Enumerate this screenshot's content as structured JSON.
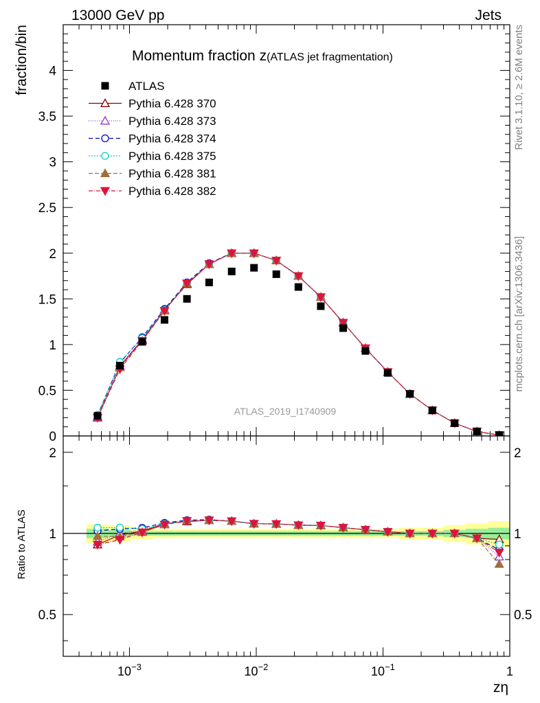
{
  "header": {
    "left": "13000 GeV pp",
    "right": "Jets"
  },
  "side_texts": {
    "rivet": "Rivet 3.1.10, ≥ 2.6M events",
    "mcplots": "mcplots.cern.ch [arXiv:1306.3436]"
  },
  "chart_data": {
    "type": "scatter",
    "title_main": "Momentum fraction z",
    "title_sub": "(ATLAS jet fragmentation)",
    "analysis_label": "ATLAS_2019_I1740909",
    "xlabel": "zη",
    "ylabel": "fraction/bin",
    "ratio_ylabel": "Ratio to ATLAS",
    "x_scale": "log",
    "xlim": [
      0.0003,
      1
    ],
    "ylim": [
      0,
      4.5
    ],
    "ratio_ylim": [
      0.35,
      2.3
    ],
    "ratio_scale": "log",
    "x_ticks": [
      {
        "value": 0.001,
        "base": "10",
        "exp": "−3"
      },
      {
        "value": 0.01,
        "base": "10",
        "exp": "−2"
      },
      {
        "value": 0.1,
        "base": "10",
        "exp": "−1"
      },
      {
        "value": 1,
        "base": "1",
        "exp": ""
      }
    ],
    "y_ticks": [
      {
        "value": 0,
        "label": "0"
      },
      {
        "value": 0.5,
        "label": "0.5"
      },
      {
        "value": 1,
        "label": "1"
      },
      {
        "value": 1.5,
        "label": "1.5"
      },
      {
        "value": 2,
        "label": "2"
      },
      {
        "value": 2.5,
        "label": "2.5"
      },
      {
        "value": 3,
        "label": "3"
      },
      {
        "value": 3.5,
        "label": "3.5"
      },
      {
        "value": 4,
        "label": "4"
      }
    ],
    "ratio_ticks": [
      {
        "value": 0.5,
        "label": "0.5"
      },
      {
        "value": 1,
        "label": "1"
      },
      {
        "value": 2,
        "label": "2"
      }
    ],
    "x": [
      0.00056,
      0.00084,
      0.00126,
      0.00189,
      0.00284,
      0.00425,
      0.0064,
      0.0096,
      0.0144,
      0.0215,
      0.0323,
      0.0485,
      0.0727,
      0.109,
      0.163,
      0.245,
      0.367,
      0.551,
      0.826
    ],
    "data": {
      "name": "ATLAS",
      "color": "#000000",
      "values": [
        0.22,
        0.77,
        1.03,
        1.27,
        1.5,
        1.68,
        1.8,
        1.84,
        1.77,
        1.63,
        1.42,
        1.18,
        0.93,
        0.69,
        0.46,
        0.28,
        0.14,
        0.05,
        0.01
      ],
      "band_rel_inner": [
        0.04,
        0.03,
        0.02,
        0.02,
        0.02,
        0.02,
        0.02,
        0.02,
        0.02,
        0.02,
        0.02,
        0.02,
        0.02,
        0.02,
        0.02,
        0.02,
        0.03,
        0.04,
        0.05
      ],
      "band_rel_outer": [
        0.08,
        0.07,
        0.05,
        0.04,
        0.04,
        0.04,
        0.04,
        0.04,
        0.04,
        0.04,
        0.04,
        0.04,
        0.04,
        0.04,
        0.05,
        0.05,
        0.07,
        0.09,
        0.11
      ]
    },
    "series": [
      {
        "name": "Pythia 6.428 370",
        "color": "#8b0000",
        "marker": "triangle-up-open",
        "dash": "",
        "values": [
          0.2,
          0.76,
          1.05,
          1.38,
          1.66,
          1.88,
          2.0,
          2.0,
          1.92,
          1.75,
          1.52,
          1.24,
          0.96,
          0.7,
          0.46,
          0.28,
          0.14,
          0.048,
          0.0095
        ]
      },
      {
        "name": "Pythia 6.428 373",
        "color": "#9932cc",
        "marker": "triangle-up-open",
        "dash": "1,2",
        "values": [
          0.205,
          0.77,
          1.06,
          1.38,
          1.67,
          1.88,
          2.0,
          2.0,
          1.92,
          1.75,
          1.52,
          1.24,
          0.96,
          0.7,
          0.46,
          0.28,
          0.14,
          0.048,
          0.0082
        ]
      },
      {
        "name": "Pythia 6.428 374",
        "color": "#0000cd",
        "marker": "circle-open",
        "dash": "6,4",
        "values": [
          0.225,
          0.8,
          1.08,
          1.39,
          1.68,
          1.89,
          2.0,
          2.0,
          1.92,
          1.75,
          1.52,
          1.24,
          0.96,
          0.7,
          0.46,
          0.28,
          0.14,
          0.048,
          0.0087
        ]
      },
      {
        "name": "Pythia 6.428 375",
        "color": "#00ced1",
        "marker": "circle-open",
        "dash": "2,2",
        "values": [
          0.231,
          0.81,
          1.07,
          1.38,
          1.67,
          1.88,
          2.0,
          2.0,
          1.92,
          1.75,
          1.52,
          1.24,
          0.96,
          0.7,
          0.46,
          0.28,
          0.14,
          0.048,
          0.0091
        ]
      },
      {
        "name": "Pythia 6.428 381",
        "color": "#a0703c",
        "marker": "triangle-up-filled",
        "dash": "6,3",
        "values": [
          0.215,
          0.75,
          1.04,
          1.37,
          1.67,
          1.88,
          2.0,
          2.0,
          1.92,
          1.75,
          1.52,
          1.24,
          0.96,
          0.7,
          0.46,
          0.28,
          0.14,
          0.048,
          0.0077
        ]
      },
      {
        "name": "Pythia 6.428 382",
        "color": "#dc143c",
        "marker": "triangle-down-filled",
        "dash": "6,2,1,2",
        "values": [
          0.2,
          0.73,
          1.04,
          1.37,
          1.67,
          1.88,
          2.0,
          2.0,
          1.92,
          1.75,
          1.52,
          1.24,
          0.96,
          0.7,
          0.46,
          0.28,
          0.14,
          0.048,
          0.0085
        ]
      }
    ]
  }
}
